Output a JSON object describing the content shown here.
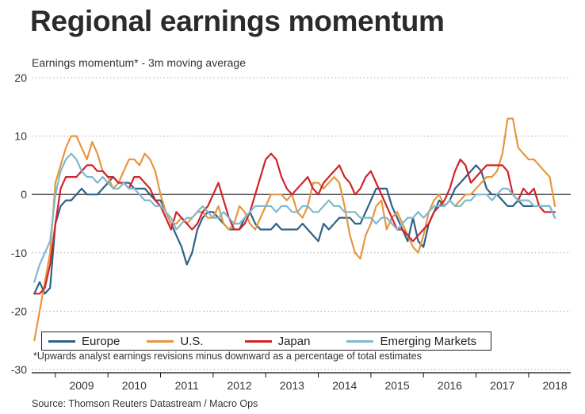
{
  "title": "Regional earnings momentum",
  "subtitle": "Earnings momentum* - 3m moving average",
  "footnote": "*Upwards analyst earnings revisions minus downward as a percentage of total estimates",
  "source": "Source: Thomson Reuters Datastream / Macro Ops",
  "colors": {
    "Europe": "#2e6185",
    "U.S.": "#e8963f",
    "Japan": "#d2232a",
    "Emerging Markets": "#7fb9cf"
  },
  "chart_data": {
    "type": "line",
    "title": "Regional earnings momentum",
    "ylabel": "Earnings momentum* - 3m moving average",
    "ylim": [
      -30,
      20
    ],
    "yticks": [
      20,
      10,
      0,
      -10,
      -20,
      -30
    ],
    "xlim": [
      2008.55,
      2018.8
    ],
    "xtick_labels": [
      "2009",
      "2010",
      "2011",
      "2012",
      "2013",
      "2014",
      "2015",
      "2016",
      "2017",
      "2018"
    ],
    "grid": "horizontal dotted",
    "legend": "bottom",
    "series": [
      {
        "name": "Europe",
        "x": [
          2008.6,
          2008.7,
          2008.8,
          2008.9,
          2009.0,
          2009.1,
          2009.2,
          2009.3,
          2009.4,
          2009.5,
          2009.6,
          2009.7,
          2009.8,
          2009.9,
          2010.0,
          2010.1,
          2010.2,
          2010.3,
          2010.4,
          2010.5,
          2010.6,
          2010.7,
          2010.8,
          2010.9,
          2011.0,
          2011.1,
          2011.2,
          2011.3,
          2011.4,
          2011.5,
          2011.6,
          2011.7,
          2011.8,
          2011.9,
          2012.0,
          2012.1,
          2012.2,
          2012.3,
          2012.4,
          2012.5,
          2012.6,
          2012.7,
          2012.8,
          2012.9,
          2013.0,
          2013.1,
          2013.2,
          2013.3,
          2013.4,
          2013.5,
          2013.6,
          2013.7,
          2013.8,
          2013.9,
          2014.0,
          2014.1,
          2014.2,
          2014.3,
          2014.4,
          2014.5,
          2014.6,
          2014.7,
          2014.8,
          2014.9,
          2015.0,
          2015.1,
          2015.2,
          2015.3,
          2015.4,
          2015.5,
          2015.6,
          2015.7,
          2015.8,
          2015.9,
          2016.0,
          2016.1,
          2016.2,
          2016.3,
          2016.4,
          2016.5,
          2016.6,
          2016.7,
          2016.8,
          2016.9,
          2017.0,
          2017.1,
          2017.2,
          2017.3,
          2017.4,
          2017.5,
          2017.6,
          2017.7,
          2017.8,
          2017.9,
          2018.0,
          2018.1,
          2018.2,
          2018.3,
          2018.4,
          2018.5
        ],
        "values": [
          -17,
          -15,
          -17,
          -16,
          -5,
          -2,
          -1,
          -1,
          0,
          1,
          0,
          0,
          0,
          1,
          2,
          3,
          2,
          2,
          2,
          1,
          1,
          1,
          0,
          -1,
          -1,
          -3,
          -5,
          -7,
          -9,
          -12,
          -10,
          -6,
          -4,
          -3,
          -3,
          -4,
          -5,
          -6,
          -6,
          -6,
          -4,
          -3,
          -5,
          -6,
          -6,
          -6,
          -5,
          -6,
          -6,
          -6,
          -6,
          -5,
          -6,
          -7,
          -8,
          -5,
          -6,
          -5,
          -4,
          -4,
          -4,
          -5,
          -5,
          -3,
          -1,
          1,
          1,
          1,
          -2,
          -4,
          -6,
          -8,
          -4,
          -8,
          -9,
          -5,
          -3,
          -1,
          -2,
          -1,
          1,
          2,
          3,
          4,
          5,
          4,
          1,
          0,
          0,
          -1,
          -2,
          -2,
          -1,
          -2,
          -2,
          -2,
          -2,
          -2,
          -2,
          -4
        ]
      },
      {
        "name": "U.S.",
        "x": [
          2008.6,
          2008.7,
          2008.8,
          2008.9,
          2009.0,
          2009.1,
          2009.2,
          2009.3,
          2009.4,
          2009.5,
          2009.6,
          2009.7,
          2009.8,
          2009.9,
          2010.0,
          2010.1,
          2010.2,
          2010.3,
          2010.4,
          2010.5,
          2010.6,
          2010.7,
          2010.8,
          2010.9,
          2011.0,
          2011.1,
          2011.2,
          2011.3,
          2011.4,
          2011.5,
          2011.6,
          2011.7,
          2011.8,
          2011.9,
          2012.0,
          2012.1,
          2012.2,
          2012.3,
          2012.4,
          2012.5,
          2012.6,
          2012.7,
          2012.8,
          2012.9,
          2013.0,
          2013.1,
          2013.2,
          2013.3,
          2013.4,
          2013.5,
          2013.6,
          2013.7,
          2013.8,
          2013.9,
          2014.0,
          2014.1,
          2014.2,
          2014.3,
          2014.4,
          2014.5,
          2014.6,
          2014.7,
          2014.8,
          2014.9,
          2015.0,
          2015.1,
          2015.2,
          2015.3,
          2015.4,
          2015.5,
          2015.6,
          2015.7,
          2015.8,
          2015.9,
          2016.0,
          2016.1,
          2016.2,
          2016.3,
          2016.4,
          2016.5,
          2016.6,
          2016.7,
          2016.8,
          2016.9,
          2017.0,
          2017.1,
          2017.2,
          2017.3,
          2017.4,
          2017.5,
          2017.6,
          2017.7,
          2017.8,
          2017.9,
          2018.0,
          2018.1,
          2018.2,
          2018.3,
          2018.4,
          2018.5
        ],
        "values": [
          -25,
          -20,
          -15,
          -10,
          2,
          5,
          8,
          10,
          10,
          8,
          6,
          9,
          7,
          4,
          3,
          1,
          2,
          4,
          6,
          6,
          5,
          7,
          6,
          4,
          0,
          -3,
          -5,
          -5,
          -4,
          -5,
          -4,
          -3,
          -3,
          -4,
          -4,
          -2,
          -5,
          -6,
          -5,
          -2,
          -3,
          -5,
          -6,
          -4,
          -2,
          0,
          0,
          0,
          -1,
          0,
          -3,
          -4,
          -2,
          2,
          2,
          1,
          2,
          3,
          2,
          -2,
          -7,
          -10,
          -11,
          -7,
          -5,
          -2,
          -1,
          -6,
          -4,
          -3,
          -5,
          -7,
          -9,
          -10,
          -7,
          -3,
          -1,
          0,
          -2,
          -1,
          -2,
          -1,
          0,
          0,
          1,
          2,
          3,
          3,
          4,
          7,
          13,
          13,
          8,
          7,
          6,
          6,
          5,
          4,
          3,
          -2
        ]
      },
      {
        "name": "Japan",
        "x": [
          2008.6,
          2008.7,
          2008.8,
          2008.9,
          2009.0,
          2009.1,
          2009.2,
          2009.3,
          2009.4,
          2009.5,
          2009.6,
          2009.7,
          2009.8,
          2009.9,
          2010.0,
          2010.1,
          2010.2,
          2010.3,
          2010.4,
          2010.5,
          2010.6,
          2010.7,
          2010.8,
          2010.9,
          2011.0,
          2011.1,
          2011.2,
          2011.3,
          2011.4,
          2011.5,
          2011.6,
          2011.7,
          2011.8,
          2011.9,
          2012.0,
          2012.1,
          2012.2,
          2012.3,
          2012.4,
          2012.5,
          2012.6,
          2012.7,
          2012.8,
          2012.9,
          2013.0,
          2013.1,
          2013.2,
          2013.3,
          2013.4,
          2013.5,
          2013.6,
          2013.7,
          2013.8,
          2013.9,
          2014.0,
          2014.1,
          2014.2,
          2014.3,
          2014.4,
          2014.5,
          2014.6,
          2014.7,
          2014.8,
          2014.9,
          2015.0,
          2015.1,
          2015.2,
          2015.3,
          2015.4,
          2015.5,
          2015.6,
          2015.7,
          2015.8,
          2015.9,
          2016.0,
          2016.1,
          2016.2,
          2016.3,
          2016.4,
          2016.5,
          2016.6,
          2016.7,
          2016.8,
          2016.9,
          2017.0,
          2017.1,
          2017.2,
          2017.3,
          2017.4,
          2017.5,
          2017.6,
          2017.7,
          2017.8,
          2017.9,
          2018.0,
          2018.1,
          2018.2,
          2018.3,
          2018.4,
          2018.5
        ],
        "values": [
          -17,
          -17,
          -16,
          -12,
          -5,
          1,
          3,
          3,
          3,
          4,
          5,
          5,
          4,
          4,
          3,
          3,
          2,
          2,
          1,
          3,
          3,
          2,
          1,
          -1,
          -2,
          -4,
          -6,
          -3,
          -4,
          -5,
          -6,
          -5,
          -3,
          -2,
          0,
          2,
          -1,
          -4,
          -6,
          -6,
          -5,
          -3,
          0,
          3,
          6,
          7,
          6,
          3,
          1,
          0,
          1,
          2,
          3,
          1,
          0,
          2,
          3,
          4,
          5,
          3,
          2,
          0,
          1,
          3,
          4,
          2,
          0,
          -2,
          -4,
          -6,
          -6,
          -7,
          -8,
          -7,
          -6,
          -5,
          -3,
          -2,
          -1,
          1,
          4,
          6,
          5,
          2,
          3,
          4,
          5,
          5,
          5,
          5,
          4,
          0,
          -1,
          1,
          0,
          1,
          -2,
          -3,
          -3,
          -3
        ]
      },
      {
        "name": "Emerging Markets",
        "x": [
          2008.6,
          2008.7,
          2008.8,
          2008.9,
          2009.0,
          2009.1,
          2009.2,
          2009.3,
          2009.4,
          2009.5,
          2009.6,
          2009.7,
          2009.8,
          2009.9,
          2010.0,
          2010.1,
          2010.2,
          2010.3,
          2010.4,
          2010.5,
          2010.6,
          2010.7,
          2010.8,
          2010.9,
          2011.0,
          2011.1,
          2011.2,
          2011.3,
          2011.4,
          2011.5,
          2011.6,
          2011.7,
          2011.8,
          2011.9,
          2012.0,
          2012.1,
          2012.2,
          2012.3,
          2012.4,
          2012.5,
          2012.6,
          2012.7,
          2012.8,
          2012.9,
          2013.0,
          2013.1,
          2013.2,
          2013.3,
          2013.4,
          2013.5,
          2013.6,
          2013.7,
          2013.8,
          2013.9,
          2014.0,
          2014.1,
          2014.2,
          2014.3,
          2014.4,
          2014.5,
          2014.6,
          2014.7,
          2014.8,
          2014.9,
          2015.0,
          2015.1,
          2015.2,
          2015.3,
          2015.4,
          2015.5,
          2015.6,
          2015.7,
          2015.8,
          2015.9,
          2016.0,
          2016.1,
          2016.2,
          2016.3,
          2016.4,
          2016.5,
          2016.6,
          2016.7,
          2016.8,
          2016.9,
          2017.0,
          2017.1,
          2017.2,
          2017.3,
          2017.4,
          2017.5,
          2017.6,
          2017.7,
          2017.8,
          2017.9,
          2018.0,
          2018.1,
          2018.2,
          2018.3,
          2018.4,
          2018.5
        ],
        "values": [
          -15,
          -12,
          -10,
          -8,
          0,
          4,
          6,
          7,
          6,
          4,
          3,
          3,
          2,
          3,
          2,
          1,
          1,
          2,
          1,
          1,
          0,
          -1,
          -1,
          -2,
          -2,
          -3,
          -4,
          -6,
          -5,
          -4,
          -4,
          -3,
          -2,
          -3,
          -4,
          -4,
          -3,
          -4,
          -5,
          -5,
          -4,
          -3,
          -2,
          -2,
          -2,
          -2,
          -3,
          -2,
          -2,
          -3,
          -3,
          -2,
          -2,
          -3,
          -3,
          -2,
          -1,
          -2,
          -2,
          -3,
          -3,
          -3,
          -4,
          -4,
          -4,
          -5,
          -4,
          -4,
          -5,
          -6,
          -5,
          -4,
          -4,
          -3,
          -4,
          -3,
          -2,
          -2,
          -2,
          -1,
          -2,
          -2,
          -1,
          -1,
          0,
          0,
          0,
          -1,
          0,
          1,
          1,
          0,
          -1,
          -1,
          -1,
          -2,
          -2,
          -2,
          -2,
          -4
        ]
      }
    ],
    "x_end": 2018.55,
    "series_order": [
      "Europe",
      "U.S.",
      "Japan",
      "Emerging Markets"
    ]
  }
}
